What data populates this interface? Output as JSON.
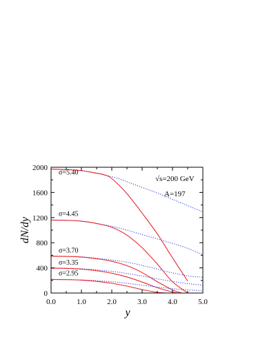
{
  "chart_data": {
    "type": "line",
    "title": "",
    "xlabel": "y",
    "ylabel": "dN/dy",
    "xlim": [
      0.0,
      5.0
    ],
    "ylim": [
      0,
      2000
    ],
    "x_ticks": [
      "0.0",
      "1.0",
      "2.0",
      "3.0",
      "4.0",
      "5.0"
    ],
    "y_ticks": [
      "0",
      "400",
      "800",
      "1200",
      "1600",
      "2000"
    ],
    "annotations": [
      "√s=200 GeV",
      "A=197"
    ],
    "colors": {
      "solid": "#e8262b",
      "dotted": "#2b3fd6"
    },
    "series": [
      {
        "label": "σ=5.40",
        "solid": {
          "x": [
            0.0,
            0.5,
            1.0,
            1.5,
            1.75,
            2.0,
            2.5,
            3.0,
            3.5,
            4.0,
            4.5
          ],
          "y": [
            1970,
            1962,
            1945,
            1905,
            1880,
            1820,
            1580,
            1270,
            940,
            560,
            190
          ]
        },
        "dotted": {
          "x": [
            0.0,
            1.0,
            2.0,
            2.5,
            3.0,
            3.5,
            4.0,
            4.5,
            5.0
          ],
          "y": [
            1970,
            1948,
            1850,
            1770,
            1680,
            1590,
            1490,
            1390,
            1290
          ]
        }
      },
      {
        "label": "σ=4.45",
        "solid": {
          "x": [
            0.0,
            0.5,
            1.0,
            1.5,
            2.0,
            2.5,
            3.0,
            3.5,
            4.0,
            4.5
          ],
          "y": [
            1160,
            1156,
            1142,
            1105,
            1045,
            920,
            720,
            460,
            180,
            0
          ]
        },
        "dotted": {
          "x": [
            0.0,
            1.0,
            2.0,
            2.5,
            3.0,
            3.5,
            4.0,
            4.5,
            5.0
          ],
          "y": [
            1160,
            1145,
            1060,
            1000,
            930,
            860,
            790,
            710,
            610
          ]
        }
      },
      {
        "label": "σ=3.70",
        "solid": {
          "x": [
            0.0,
            0.5,
            1.0,
            1.5,
            2.0,
            2.5,
            3.0,
            3.5,
            4.0,
            4.3
          ],
          "y": [
            585,
            582,
            572,
            545,
            505,
            435,
            325,
            180,
            50,
            0
          ]
        },
        "dotted": {
          "x": [
            0.0,
            1.0,
            2.0,
            2.5,
            3.0,
            3.5,
            4.0,
            4.5,
            5.0
          ],
          "y": [
            585,
            575,
            525,
            490,
            440,
            380,
            320,
            275,
            250
          ]
        }
      },
      {
        "label": "σ=3.35",
        "solid": {
          "x": [
            0.0,
            0.5,
            1.0,
            1.5,
            2.0,
            2.5,
            3.0,
            3.5,
            4.0,
            4.2
          ],
          "y": [
            395,
            392,
            380,
            355,
            315,
            255,
            175,
            85,
            15,
            0
          ]
        },
        "dotted": {
          "x": [
            0.0,
            1.0,
            2.0,
            2.5,
            3.0,
            3.5,
            4.0,
            4.5,
            5.0
          ],
          "y": [
            395,
            385,
            345,
            310,
            270,
            225,
            185,
            150,
            125
          ]
        }
      },
      {
        "label": "σ=2.95",
        "solid": {
          "x": [
            0.0,
            0.5,
            1.0,
            1.5,
            2.0,
            2.5,
            3.0,
            3.5,
            3.8
          ],
          "y": [
            215,
            213,
            205,
            185,
            155,
            110,
            55,
            10,
            0
          ]
        },
        "dotted": {
          "x": [
            0.0,
            1.0,
            2.0,
            2.5,
            3.0,
            3.5,
            4.0,
            4.5,
            5.0
          ],
          "y": [
            215,
            208,
            180,
            155,
            125,
            95,
            70,
            50,
            35
          ]
        }
      }
    ]
  }
}
